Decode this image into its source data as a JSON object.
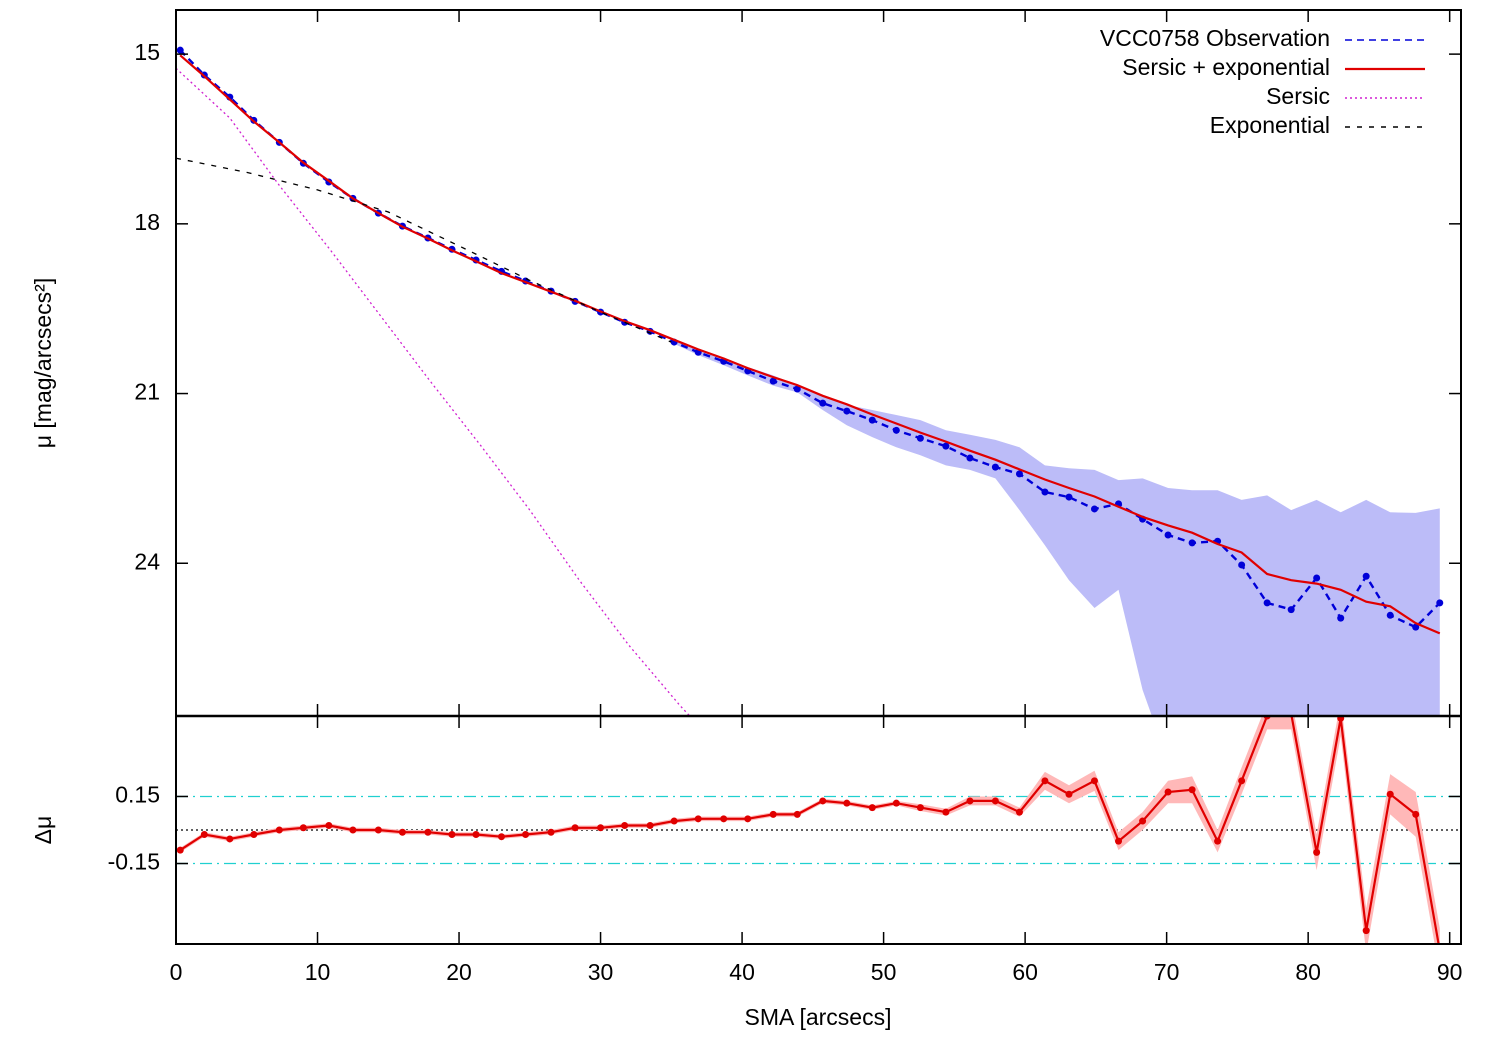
{
  "chart_data": [
    {
      "type": "line",
      "ylabel": "μ [mag/arcsecs²]",
      "xlim": [
        0,
        90.8
      ],
      "ylim": [
        14.22,
        26.7
      ],
      "inverted": true,
      "yticks": [
        15,
        18,
        21,
        24
      ],
      "legend": "top-right",
      "x": [
        0.3,
        2.0,
        3.8,
        5.5,
        7.3,
        9.0,
        10.8,
        12.5,
        14.3,
        16.0,
        17.8,
        19.5,
        21.2,
        23.0,
        24.7,
        26.5,
        28.2,
        30.0,
        31.7,
        33.5,
        35.2,
        36.9,
        38.7,
        40.4,
        42.2,
        43.9,
        45.7,
        47.4,
        49.2,
        50.9,
        52.6,
        54.4,
        56.1,
        57.9,
        59.6,
        61.4,
        63.1,
        64.9,
        66.6,
        68.3,
        70.1,
        71.8,
        73.6,
        75.3,
        77.1,
        78.8,
        80.6,
        82.3,
        84.1,
        85.8,
        87.6,
        89.3
      ],
      "band": {
        "color": "#bcbcf8",
        "low": [
          null,
          null,
          null,
          null,
          null,
          null,
          null,
          null,
          null,
          null,
          null,
          null,
          null,
          null,
          null,
          null,
          null,
          null,
          null,
          null,
          20.05,
          20.22,
          20.38,
          20.53,
          20.68,
          20.85,
          21.03,
          21.2,
          21.29,
          21.38,
          21.47,
          21.65,
          21.73,
          21.82,
          21.95,
          22.27,
          22.32,
          22.35,
          22.53,
          22.5,
          22.67,
          22.71,
          22.71,
          22.88,
          22.8,
          23.06,
          22.88,
          23.1,
          22.88,
          23.1,
          23.11,
          23.03
        ],
        "high": [
          null,
          null,
          null,
          null,
          null,
          null,
          null,
          null,
          null,
          null,
          null,
          null,
          null,
          null,
          null,
          null,
          null,
          null,
          null,
          null,
          20.12,
          20.32,
          20.5,
          20.68,
          20.86,
          20.98,
          21.29,
          21.56,
          21.77,
          21.95,
          22.09,
          22.27,
          22.35,
          22.5,
          23.06,
          23.68,
          24.3,
          24.79,
          24.47,
          26.24,
          27.5,
          27.5,
          27.5,
          27.5,
          27.5,
          27.5,
          27.5,
          27.5,
          27.5,
          27.5,
          27.5,
          27.5
        ]
      },
      "series": [
        {
          "name": "VCC0758 Observation",
          "color": "#0000d8",
          "style": "dashed",
          "markers": true,
          "values": [
            14.93,
            15.37,
            15.76,
            16.17,
            16.56,
            16.93,
            17.26,
            17.55,
            17.81,
            18.04,
            18.25,
            18.45,
            18.64,
            18.84,
            19.01,
            19.19,
            19.37,
            19.56,
            19.74,
            19.9,
            20.09,
            20.27,
            20.43,
            20.6,
            20.78,
            20.92,
            21.17,
            21.31,
            21.47,
            21.65,
            21.79,
            21.93,
            22.14,
            22.3,
            22.42,
            22.74,
            22.83,
            23.04,
            22.95,
            23.22,
            23.5,
            23.64,
            23.61,
            24.03,
            24.7,
            24.82,
            24.26,
            24.97,
            24.23,
            24.92,
            25.13,
            24.7
          ]
        },
        {
          "name": "Sersic + exponential",
          "color": "#e00000",
          "style": "solid",
          "markers": false,
          "values": [
            15.02,
            15.39,
            15.8,
            16.19,
            16.56,
            16.92,
            17.24,
            17.55,
            17.81,
            18.05,
            18.26,
            18.47,
            18.66,
            18.87,
            19.03,
            19.2,
            19.36,
            19.55,
            19.72,
            19.88,
            20.05,
            20.22,
            20.38,
            20.55,
            20.71,
            20.85,
            21.04,
            21.19,
            21.37,
            21.53,
            21.69,
            21.85,
            22.01,
            22.17,
            22.34,
            22.52,
            22.67,
            22.82,
            23.0,
            23.18,
            23.33,
            23.46,
            23.66,
            23.81,
            24.19,
            24.3,
            24.36,
            24.47,
            24.68,
            24.76,
            25.06,
            25.24
          ]
        },
        {
          "name": "Sersic",
          "color": "#d020d0",
          "style": "dotted",
          "markers": false,
          "x": [
            0,
            3.8,
            7.3,
            10.9,
            14.4,
            17.9,
            21.5,
            25.0,
            28.5,
            32.0,
            35.6,
            36.3
          ],
          "values": [
            15.25,
            16.13,
            17.32,
            18.46,
            19.61,
            20.76,
            21.91,
            23.06,
            24.3,
            25.45,
            26.51,
            26.7
          ]
        },
        {
          "name": "Exponential",
          "color": "#000000",
          "style": "short-dashed",
          "markers": false,
          "x": [
            0,
            5,
            10,
            15,
            20,
            25,
            30,
            35
          ],
          "values": [
            16.84,
            17.09,
            17.4,
            17.79,
            18.39,
            19.0,
            19.56,
            20.09
          ]
        }
      ]
    },
    {
      "type": "line",
      "ylabel": "Δμ",
      "xlabel": "SMA [arcsecs]",
      "xlim": [
        0,
        90.8
      ],
      "ylim": [
        -0.51,
        0.51
      ],
      "xticks": [
        0,
        10,
        20,
        30,
        40,
        50,
        60,
        70,
        80,
        90
      ],
      "yticks": [
        0.15,
        -0.15
      ],
      "hlines": [
        {
          "value": 0.15,
          "color": "#20d0d0",
          "style": "dashdot"
        },
        {
          "value": -0.15,
          "color": "#20d0d0",
          "style": "dashdot"
        },
        {
          "value": 0,
          "color": "#000000",
          "style": "dotted"
        }
      ],
      "x": [
        0.3,
        2.0,
        3.8,
        5.5,
        7.3,
        9.0,
        10.8,
        12.5,
        14.3,
        16.0,
        17.8,
        19.5,
        21.2,
        23.0,
        24.7,
        26.5,
        28.2,
        30.0,
        31.7,
        33.5,
        35.2,
        36.9,
        38.7,
        40.4,
        42.2,
        43.9,
        45.7,
        47.4,
        49.2,
        50.9,
        52.6,
        54.4,
        56.1,
        57.9,
        59.6,
        61.4,
        63.1,
        64.9,
        66.6,
        68.3,
        70.1,
        71.8,
        73.6,
        75.3,
        77.1,
        78.8,
        80.6,
        82.3,
        84.1,
        85.8,
        87.6,
        89.3
      ],
      "series": [
        {
          "color": "#e00000",
          "band_color": "#ffb8b8",
          "markers": true,
          "values": [
            -0.09,
            -0.02,
            -0.04,
            -0.02,
            0,
            0.01,
            0.02,
            0,
            0,
            -0.01,
            -0.01,
            -0.02,
            -0.02,
            -0.03,
            -0.02,
            -0.01,
            0.01,
            0.01,
            0.02,
            0.02,
            0.04,
            0.05,
            0.05,
            0.05,
            0.07,
            0.07,
            0.13,
            0.12,
            0.1,
            0.12,
            0.1,
            0.08,
            0.13,
            0.13,
            0.08,
            0.22,
            0.16,
            0.22,
            -0.05,
            0.04,
            0.17,
            0.18,
            -0.05,
            0.22,
            0.51,
            0.52,
            -0.1,
            0.5,
            -0.45,
            0.16,
            0.07,
            -0.54
          ],
          "errors": [
            0.01,
            0.01,
            0.01,
            0.01,
            0.01,
            0.01,
            0.01,
            0.01,
            0.01,
            0.01,
            0.01,
            0.01,
            0.01,
            0.01,
            0.01,
            0.01,
            0.01,
            0.01,
            0.01,
            0.01,
            0.01,
            0.01,
            0.01,
            0.01,
            0.01,
            0.01,
            0.01,
            0.01,
            0.01,
            0.01,
            0.015,
            0.015,
            0.02,
            0.02,
            0.02,
            0.04,
            0.04,
            0.045,
            0.04,
            0.04,
            0.05,
            0.06,
            0.05,
            0.06,
            0.06,
            0.07,
            0.08,
            0.08,
            0.1,
            0.09,
            0.1,
            0.1
          ]
        }
      ]
    }
  ]
}
